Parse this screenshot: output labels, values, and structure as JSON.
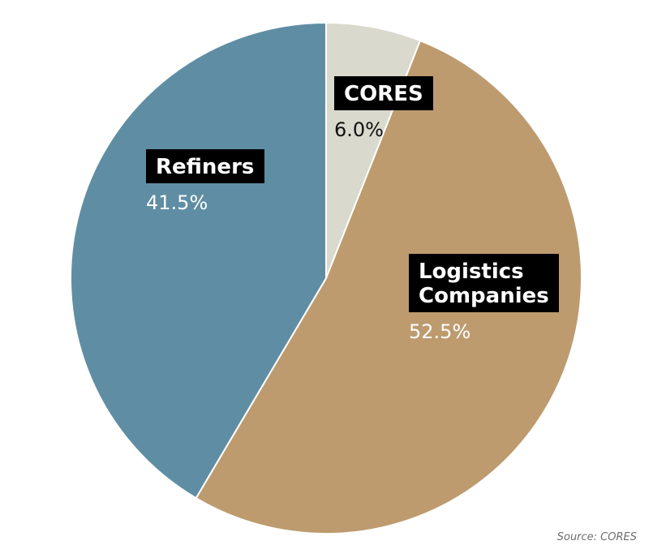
{
  "chart_data": {
    "type": "pie",
    "slices": [
      {
        "label": [
          "CORES"
        ],
        "value": 6.0,
        "value_label": "6.0%",
        "color": "#dad9cd",
        "pct_color": "#111111"
      },
      {
        "label": [
          "Logistics",
          "Companies"
        ],
        "value": 52.5,
        "value_label": "52.5%",
        "color": "#bd9b6e",
        "pct_color": "#ffffff"
      },
      {
        "label": [
          "Refiners"
        ],
        "value": 41.5,
        "value_label": "41.5%",
        "color": "#5f8ea4",
        "pct_color": "#ffffff"
      }
    ],
    "start_angle": "12 o'clock",
    "direction": "clockwise",
    "slice_border_color": "#ffffff"
  },
  "source": "Source: CORES"
}
